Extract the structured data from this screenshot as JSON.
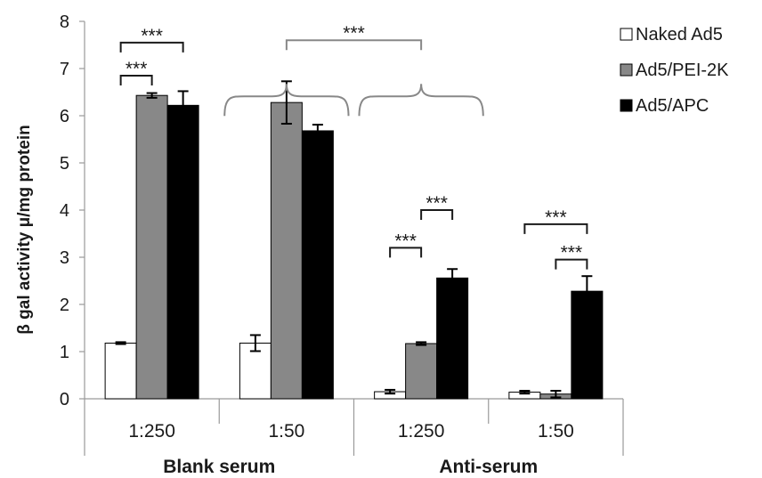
{
  "chart_data": {
    "type": "bar",
    "ylabel": "β gal activity μ/mg protein",
    "ylim": [
      0,
      8
    ],
    "yticks": [
      0,
      1,
      2,
      3,
      4,
      5,
      6,
      7,
      8
    ],
    "categories": [
      "1:250",
      "1:50",
      "1:250",
      "1:50"
    ],
    "groups": [
      {
        "label": "Blank serum",
        "categories": [
          0,
          1
        ]
      },
      {
        "label": "Anti-serum",
        "categories": [
          2,
          3
        ]
      }
    ],
    "series": [
      {
        "name": "Naked Ad5",
        "color": "#ffffff",
        "values": [
          1.18,
          1.18,
          0.15,
          0.14
        ],
        "errors": [
          0.02,
          0.17,
          0.04,
          0.03
        ]
      },
      {
        "name": "Ad5/PEI-2K",
        "color": "#888888",
        "values": [
          6.43,
          6.28,
          1.17,
          0.1
        ],
        "errors": [
          0.05,
          0.45,
          0.03,
          0.07
        ]
      },
      {
        "name": "Ad5/APC",
        "color": "#000000",
        "values": [
          6.22,
          5.68,
          2.56,
          2.28
        ],
        "errors": [
          0.3,
          0.13,
          0.19,
          0.32
        ]
      }
    ],
    "legend_position": "top-right",
    "annotations": [
      {
        "text": "***",
        "from": {
          "category": 0,
          "series": 0
        },
        "to": {
          "category": 0,
          "series": 2
        },
        "y": 7.55,
        "color": "#1a1a1a"
      },
      {
        "text": "***",
        "from": {
          "category": 0,
          "series": 0
        },
        "to": {
          "category": 0,
          "series": 1
        },
        "y": 6.85,
        "color": "#1a1a1a"
      },
      {
        "text": "***",
        "from": {
          "category": 1,
          "series": 1
        },
        "to": {
          "category": 2,
          "series": 1
        },
        "y": 7.6,
        "color": "#888888"
      },
      {
        "text": "***",
        "from": {
          "category": 2,
          "series": 0
        },
        "to": {
          "category": 2,
          "series": 1
        },
        "y": 3.2,
        "color": "#1a1a1a"
      },
      {
        "text": "***",
        "from": {
          "category": 2,
          "series": 1
        },
        "to": {
          "category": 2,
          "series": 2
        },
        "y": 4.0,
        "color": "#1a1a1a"
      },
      {
        "text": "***",
        "from": {
          "category": 3,
          "series": 0
        },
        "to": {
          "category": 3,
          "series": 2
        },
        "y": 3.7,
        "color": "#1a1a1a"
      },
      {
        "text": "***",
        "from": {
          "category": 3,
          "series": 1
        },
        "to": {
          "category": 3,
          "series": 2
        },
        "y": 2.95,
        "color": "#1a1a1a"
      }
    ],
    "braces": [
      {
        "category": 1,
        "y": 6.6,
        "color": "#888888"
      },
      {
        "category": 2,
        "y": 6.6,
        "color": "#888888"
      }
    ]
  }
}
